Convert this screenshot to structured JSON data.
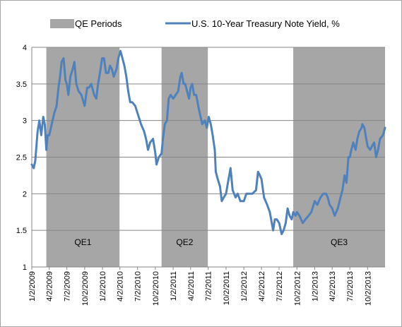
{
  "chart_data": {
    "type": "line",
    "title": "",
    "xlabel": "",
    "ylabel": "",
    "ylim": [
      1,
      4
    ],
    "yticks": [
      1,
      1.5,
      2,
      2.5,
      3,
      3.5,
      4
    ],
    "ytick_labels": [
      "1",
      "1.5",
      "2",
      "2.5",
      "3",
      "3.5",
      "4"
    ],
    "xlim": [
      "2009-01-02",
      "2013-12-31"
    ],
    "xtick_labels": [
      "1/2/2009",
      "4/2/2009",
      "7/2/2009",
      "10/2/2009",
      "1/2/2010",
      "4/2/2010",
      "7/2/2010",
      "10/2/2010",
      "1/2/2011",
      "4/2/2011",
      "7/2/2011",
      "10/2/2011",
      "1/2/2012",
      "4/2/2012",
      "7/2/2012",
      "10/2/2012",
      "1/2/2013",
      "4/2/2013",
      "7/2/2013",
      "10/2/2013"
    ],
    "grid": "horizontal",
    "legend_position": "top",
    "legend": [
      {
        "label": "QE Periods",
        "kind": "shaded-area",
        "color": "#a6a6a6"
      },
      {
        "label": "U.S. 10-Year Treasury Note Yield, %",
        "kind": "line",
        "color": "#4f81bd"
      }
    ],
    "shaded_periods": [
      {
        "label": "QE1",
        "start": "2009-03-18",
        "end": "2010-03-31"
      },
      {
        "label": "QE2",
        "start": "2010-11-03",
        "end": "2011-06-30"
      },
      {
        "label": "QE3",
        "start": "2012-09-13",
        "end": "2013-12-31"
      }
    ],
    "series": [
      {
        "name": "U.S. 10-Year Treasury Note Yield, %",
        "color": "#4f81bd",
        "x": [
          "2009-01-02",
          "2009-01-12",
          "2009-01-20",
          "2009-02-01",
          "2009-02-10",
          "2009-02-20",
          "2009-03-02",
          "2009-03-10",
          "2009-03-18",
          "2009-03-25",
          "2009-04-02",
          "2009-04-15",
          "2009-04-28",
          "2009-05-10",
          "2009-05-20",
          "2009-05-28",
          "2009-06-05",
          "2009-06-15",
          "2009-06-25",
          "2009-07-02",
          "2009-07-10",
          "2009-07-20",
          "2009-08-01",
          "2009-08-10",
          "2009-08-20",
          "2009-09-01",
          "2009-09-15",
          "2009-10-02",
          "2009-10-15",
          "2009-10-25",
          "2009-11-05",
          "2009-11-20",
          "2009-12-01",
          "2009-12-10",
          "2009-12-20",
          "2009-12-31",
          "2010-01-10",
          "2010-01-20",
          "2010-02-01",
          "2010-02-10",
          "2010-02-20",
          "2010-03-01",
          "2010-03-15",
          "2010-03-25",
          "2010-04-05",
          "2010-04-15",
          "2010-04-25",
          "2010-05-05",
          "2010-05-15",
          "2010-05-25",
          "2010-06-05",
          "2010-06-20",
          "2010-07-02",
          "2010-07-20",
          "2010-08-05",
          "2010-08-15",
          "2010-08-25",
          "2010-09-05",
          "2010-09-20",
          "2010-10-02",
          "2010-10-08",
          "2010-10-20",
          "2010-11-03",
          "2010-11-10",
          "2010-11-20",
          "2010-12-01",
          "2010-12-10",
          "2010-12-20",
          "2011-01-02",
          "2011-01-15",
          "2011-01-28",
          "2011-02-08",
          "2011-02-15",
          "2011-02-25",
          "2011-03-05",
          "2011-03-15",
          "2011-03-25",
          "2011-04-02",
          "2011-04-10",
          "2011-04-20",
          "2011-05-01",
          "2011-05-15",
          "2011-06-01",
          "2011-06-15",
          "2011-06-25",
          "2011-07-05",
          "2011-07-15",
          "2011-07-25",
          "2011-08-05",
          "2011-08-10",
          "2011-08-20",
          "2011-09-01",
          "2011-09-10",
          "2011-09-20",
          "2011-10-02",
          "2011-10-15",
          "2011-10-25",
          "2011-11-05",
          "2011-11-20",
          "2011-12-01",
          "2011-12-15",
          "2012-01-02",
          "2012-01-15",
          "2012-02-01",
          "2012-02-15",
          "2012-03-05",
          "2012-03-15",
          "2012-03-25",
          "2012-04-02",
          "2012-04-15",
          "2012-05-01",
          "2012-05-15",
          "2012-06-01",
          "2012-06-10",
          "2012-06-20",
          "2012-07-02",
          "2012-07-15",
          "2012-07-25",
          "2012-08-05",
          "2012-08-15",
          "2012-08-25",
          "2012-09-05",
          "2012-09-13",
          "2012-09-25",
          "2012-10-02",
          "2012-10-15",
          "2012-11-01",
          "2012-11-15",
          "2012-12-01",
          "2012-12-15",
          "2013-01-02",
          "2013-01-15",
          "2013-02-01",
          "2013-02-15",
          "2013-03-01",
          "2013-03-10",
          "2013-03-20",
          "2013-04-02",
          "2013-04-15",
          "2013-05-01",
          "2013-05-15",
          "2013-05-25",
          "2013-06-05",
          "2013-06-15",
          "2013-06-25",
          "2013-07-02",
          "2013-07-10",
          "2013-07-20",
          "2013-08-01",
          "2013-08-10",
          "2013-08-20",
          "2013-09-01",
          "2013-09-05",
          "2013-09-15",
          "2013-09-25",
          "2013-10-02",
          "2013-10-15",
          "2013-10-25",
          "2013-11-05",
          "2013-11-15",
          "2013-11-25",
          "2013-12-05",
          "2013-12-20",
          "2013-12-31"
        ],
        "values": [
          2.4,
          2.35,
          2.45,
          2.85,
          3.0,
          2.8,
          3.05,
          2.95,
          2.6,
          2.8,
          2.8,
          2.95,
          3.1,
          3.2,
          3.45,
          3.6,
          3.8,
          3.85,
          3.55,
          3.5,
          3.35,
          3.6,
          3.7,
          3.8,
          3.5,
          3.4,
          3.35,
          3.2,
          3.45,
          3.45,
          3.5,
          3.35,
          3.3,
          3.5,
          3.65,
          3.85,
          3.85,
          3.65,
          3.65,
          3.75,
          3.7,
          3.6,
          3.7,
          3.85,
          3.95,
          3.85,
          3.75,
          3.6,
          3.4,
          3.25,
          3.25,
          3.2,
          3.1,
          2.95,
          2.85,
          2.75,
          2.6,
          2.7,
          2.75,
          2.55,
          2.4,
          2.5,
          2.55,
          2.75,
          2.95,
          3.0,
          3.3,
          3.35,
          3.3,
          3.35,
          3.4,
          3.6,
          3.65,
          3.5,
          3.5,
          3.4,
          3.3,
          3.45,
          3.5,
          3.35,
          3.35,
          3.15,
          2.95,
          3.0,
          2.9,
          3.05,
          2.95,
          2.8,
          2.6,
          2.3,
          2.2,
          2.1,
          1.9,
          1.95,
          2.0,
          2.2,
          2.35,
          2.05,
          1.95,
          2.0,
          1.9,
          1.9,
          2.0,
          2.0,
          2.0,
          2.05,
          2.3,
          2.25,
          2.2,
          1.95,
          1.85,
          1.75,
          1.5,
          1.65,
          1.65,
          1.6,
          1.45,
          1.5,
          1.6,
          1.8,
          1.7,
          1.65,
          1.75,
          1.7,
          1.75,
          1.7,
          1.6,
          1.65,
          1.7,
          1.75,
          1.9,
          1.85,
          1.95,
          2.0,
          2.0,
          1.95,
          1.85,
          1.8,
          1.7,
          1.8,
          1.95,
          2.05,
          2.25,
          2.15,
          2.5,
          2.5,
          2.6,
          2.7,
          2.6,
          2.75,
          2.85,
          2.9,
          2.95,
          2.9,
          2.75,
          2.65,
          2.6,
          2.65,
          2.7,
          2.5,
          2.6,
          2.75,
          2.8,
          2.9
        ]
      }
    ]
  }
}
